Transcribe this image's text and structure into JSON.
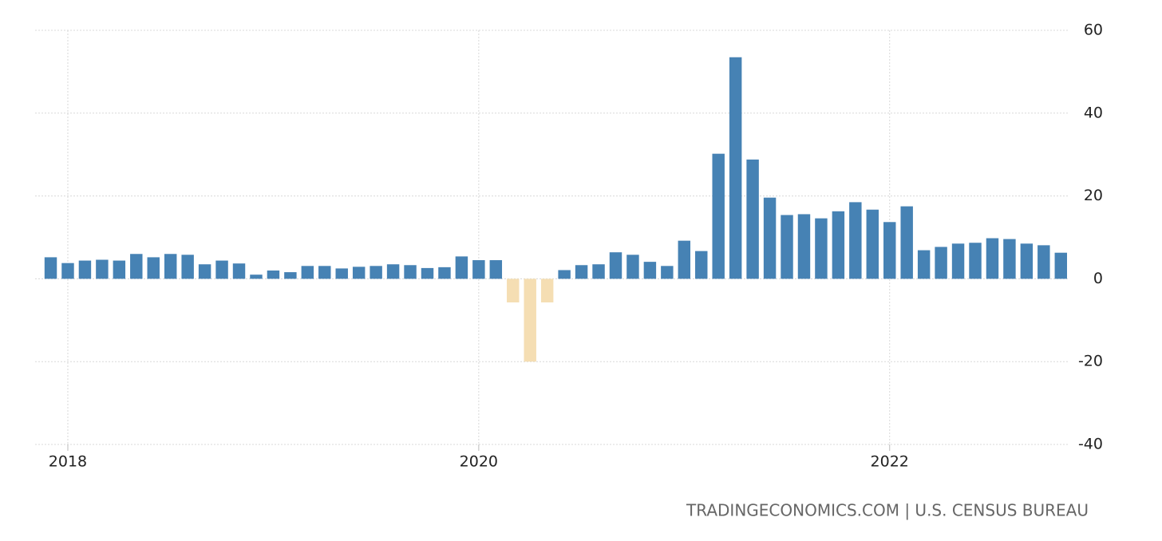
{
  "chart_data": {
    "type": "bar",
    "categories": [
      null,
      "2018",
      null,
      null,
      null,
      null,
      null,
      null,
      null,
      null,
      null,
      null,
      null,
      null,
      null,
      null,
      null,
      null,
      null,
      null,
      null,
      null,
      null,
      null,
      null,
      "2020",
      null,
      null,
      null,
      null,
      null,
      null,
      null,
      null,
      null,
      null,
      null,
      null,
      null,
      null,
      null,
      null,
      null,
      null,
      null,
      null,
      null,
      null,
      null,
      "2022",
      null,
      null,
      null,
      null,
      null,
      null,
      null,
      null,
      null,
      null
    ],
    "values": [
      5.2,
      3.8,
      4.4,
      4.6,
      4.4,
      6.0,
      5.2,
      6.0,
      5.8,
      3.5,
      4.4,
      3.7,
      1.0,
      2.0,
      1.6,
      3.1,
      3.1,
      2.5,
      2.9,
      3.1,
      3.5,
      3.3,
      2.6,
      2.8,
      5.4,
      4.5,
      4.5,
      -5.7,
      -20,
      -5.7,
      2.1,
      3.3,
      3.5,
      6.4,
      5.8,
      4.1,
      3.1,
      9.2,
      6.7,
      30.2,
      53.5,
      28.8,
      19.6,
      15.4,
      15.6,
      14.6,
      16.3,
      18.5,
      16.7,
      13.7,
      17.5,
      6.9,
      7.7,
      8.5,
      8.7,
      9.8,
      9.6,
      8.5,
      8.1,
      6.3
    ],
    "positive_color": "#4682b4",
    "negative_color": "#f5deb3",
    "ylim": [
      -40,
      60
    ],
    "yticks": [
      -40,
      -20,
      0,
      20,
      40,
      60
    ],
    "grid": true,
    "source": "TRADINGECONOMICS.COM | U.S. CENSUS BUREAU"
  }
}
